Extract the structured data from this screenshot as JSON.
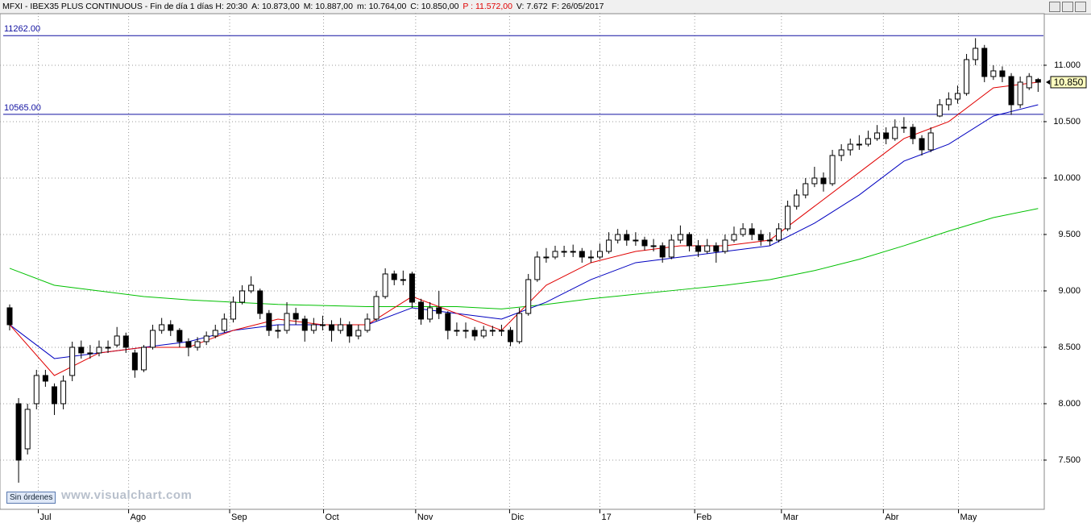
{
  "header": {
    "symbol": "MFXI - IBEX35 PLUS CONTINUOUS - Fin de día 1 días",
    "items": [
      "H: 20:30",
      "A: 10.873,00",
      "M: 10.887,00",
      "m: 10.764,00",
      "C: 10.850,00",
      "P : 11.572,00",
      "V: 7.672",
      "F: 26/05/2017"
    ]
  },
  "ui": {
    "orders_button": "Sin órdenes",
    "watermark": "www.visualchart.com"
  },
  "chart_data": {
    "type": "candlestick",
    "ylim": [
      7064,
      11464
    ],
    "xlim": [
      -1.08,
      115.6
    ],
    "grid": true,
    "yticks": [
      {
        "value": 7500,
        "label": "7.500"
      },
      {
        "value": 8000,
        "label": "8.000"
      },
      {
        "value": 8500,
        "label": "8.500"
      },
      {
        "value": 9000,
        "label": "9.000"
      },
      {
        "value": 9500,
        "label": "9.500"
      },
      {
        "value": 10000,
        "label": "10.000"
      },
      {
        "value": 10500,
        "label": "10.500"
      },
      {
        "value": 11000,
        "label": "11.000"
      }
    ],
    "xticks": [
      {
        "value": 3.2,
        "label": "Jul"
      },
      {
        "value": 13.3,
        "label": "Ago"
      },
      {
        "value": 24.6,
        "label": "Sep"
      },
      {
        "value": 35.1,
        "label": "Oct"
      },
      {
        "value": 45.4,
        "label": "Nov"
      },
      {
        "value": 55.9,
        "label": "Dic"
      },
      {
        "value": 66.0,
        "label": "17"
      },
      {
        "value": 76.6,
        "label": "Feb"
      },
      {
        "value": 86.3,
        "label": "Mar"
      },
      {
        "value": 97.7,
        "label": "Abr"
      },
      {
        "value": 106.1,
        "label": "May"
      }
    ],
    "levels": [
      {
        "value": 11262,
        "label": "11262.00"
      },
      {
        "value": 10565,
        "label": "10565.00"
      }
    ],
    "last_price": {
      "value": 10850,
      "label": "10.850"
    },
    "candles": [
      [
        8850,
        8880,
        8650,
        8700
      ],
      [
        8000,
        8050,
        7300,
        7500
      ],
      [
        7600,
        8000,
        7550,
        7950
      ],
      [
        8000,
        8300,
        7950,
        8250
      ],
      [
        8250,
        8300,
        8150,
        8200
      ],
      [
        8150,
        8180,
        7900,
        8000
      ],
      [
        8000,
        8250,
        7950,
        8200
      ],
      [
        8250,
        8550,
        8200,
        8500
      ],
      [
        8500,
        8560,
        8400,
        8450
      ],
      [
        8450,
        8520,
        8400,
        8450
      ],
      [
        8450,
        8560,
        8420,
        8500
      ],
      [
        8500,
        8560,
        8450,
        8500
      ],
      [
        8520,
        8680,
        8500,
        8600
      ],
      [
        8600,
        8630,
        8450,
        8500
      ],
      [
        8450,
        8480,
        8230,
        8300
      ],
      [
        8300,
        8520,
        8280,
        8500
      ],
      [
        8500,
        8700,
        8480,
        8650
      ],
      [
        8650,
        8760,
        8620,
        8700
      ],
      [
        8700,
        8740,
        8600,
        8650
      ],
      [
        8650,
        8670,
        8500,
        8550
      ],
      [
        8550,
        8580,
        8420,
        8500
      ],
      [
        8500,
        8590,
        8470,
        8550
      ],
      [
        8550,
        8640,
        8520,
        8600
      ],
      [
        8600,
        8700,
        8580,
        8650
      ],
      [
        8650,
        8800,
        8630,
        8750
      ],
      [
        8750,
        8950,
        8720,
        8900
      ],
      [
        8900,
        9050,
        8880,
        9000
      ],
      [
        9000,
        9130,
        8980,
        9050
      ],
      [
        9000,
        9020,
        8750,
        8800
      ],
      [
        8800,
        8830,
        8600,
        8650
      ],
      [
        8650,
        8700,
        8580,
        8650
      ],
      [
        8650,
        8900,
        8620,
        8800
      ],
      [
        8800,
        8850,
        8700,
        8750
      ],
      [
        8750,
        8780,
        8550,
        8650
      ],
      [
        8650,
        8760,
        8620,
        8700
      ],
      [
        8700,
        8780,
        8650,
        8700
      ],
      [
        8700,
        8740,
        8550,
        8650
      ],
      [
        8650,
        8760,
        8620,
        8700
      ],
      [
        8700,
        8730,
        8540,
        8600
      ],
      [
        8600,
        8700,
        8570,
        8650
      ],
      [
        8650,
        8800,
        8630,
        8750
      ],
      [
        8750,
        9000,
        8730,
        8950
      ],
      [
        8950,
        9200,
        8930,
        9150
      ],
      [
        9150,
        9180,
        9050,
        9100
      ],
      [
        9100,
        9180,
        9050,
        9100
      ],
      [
        9150,
        9170,
        8850,
        8900
      ],
      [
        8900,
        8930,
        8700,
        8750
      ],
      [
        8750,
        8900,
        8720,
        8850
      ],
      [
        8850,
        9000,
        8750,
        8800
      ],
      [
        8800,
        8820,
        8570,
        8650
      ],
      [
        8650,
        8720,
        8600,
        8650
      ],
      [
        8650,
        8720,
        8580,
        8650
      ],
      [
        8650,
        8680,
        8560,
        8600
      ],
      [
        8600,
        8690,
        8580,
        8650
      ],
      [
        8650,
        8690,
        8600,
        8650
      ],
      [
        8650,
        8700,
        8600,
        8650
      ],
      [
        8650,
        8680,
        8510,
        8550
      ],
      [
        8550,
        8850,
        8530,
        8800
      ],
      [
        8800,
        9150,
        8780,
        9100
      ],
      [
        9100,
        9350,
        9080,
        9300
      ],
      [
        9300,
        9380,
        9250,
        9300
      ],
      [
        9300,
        9400,
        9280,
        9350
      ],
      [
        9350,
        9400,
        9300,
        9350
      ],
      [
        9350,
        9410,
        9300,
        9350
      ],
      [
        9350,
        9380,
        9250,
        9300
      ],
      [
        9300,
        9360,
        9250,
        9300
      ],
      [
        9300,
        9420,
        9280,
        9350
      ],
      [
        9350,
        9520,
        9330,
        9450
      ],
      [
        9450,
        9550,
        9420,
        9500
      ],
      [
        9500,
        9540,
        9400,
        9450
      ],
      [
        9450,
        9520,
        9400,
        9450
      ],
      [
        9450,
        9480,
        9360,
        9400
      ],
      [
        9400,
        9460,
        9350,
        9400
      ],
      [
        9400,
        9430,
        9250,
        9300
      ],
      [
        9300,
        9500,
        9280,
        9450
      ],
      [
        9450,
        9580,
        9420,
        9500
      ],
      [
        9500,
        9520,
        9350,
        9400
      ],
      [
        9400,
        9450,
        9300,
        9350
      ],
      [
        9350,
        9460,
        9330,
        9400
      ],
      [
        9400,
        9430,
        9250,
        9350
      ],
      [
        9350,
        9500,
        9330,
        9450
      ],
      [
        9450,
        9570,
        9430,
        9500
      ],
      [
        9500,
        9600,
        9480,
        9550
      ],
      [
        9550,
        9600,
        9450,
        9500
      ],
      [
        9500,
        9540,
        9400,
        9450
      ],
      [
        9450,
        9520,
        9400,
        9450
      ],
      [
        9450,
        9600,
        9430,
        9550
      ],
      [
        9550,
        9800,
        9530,
        9750
      ],
      [
        9750,
        9900,
        9720,
        9850
      ],
      [
        9850,
        10000,
        9820,
        9950
      ],
      [
        9950,
        10100,
        9920,
        10000
      ],
      [
        10000,
        10050,
        9880,
        9950
      ],
      [
        9950,
        10250,
        9930,
        10200
      ],
      [
        10200,
        10300,
        10150,
        10250
      ],
      [
        10250,
        10350,
        10200,
        10300
      ],
      [
        10300,
        10380,
        10250,
        10300
      ],
      [
        10300,
        10420,
        10280,
        10350
      ],
      [
        10350,
        10470,
        10330,
        10400
      ],
      [
        10400,
        10450,
        10300,
        10350
      ],
      [
        10350,
        10520,
        10330,
        10450
      ],
      [
        10450,
        10540,
        10400,
        10450
      ],
      [
        10450,
        10480,
        10300,
        10350
      ],
      [
        10350,
        10380,
        10200,
        10250
      ],
      [
        10250,
        10450,
        10230,
        10400
      ],
      [
        10550,
        10700,
        10540,
        10650
      ],
      [
        10650,
        10760,
        10600,
        10700
      ],
      [
        10700,
        10820,
        10660,
        10750
      ],
      [
        10750,
        11100,
        10730,
        11050
      ],
      [
        11050,
        11240,
        11000,
        11150
      ],
      [
        11150,
        11180,
        10850,
        10900
      ],
      [
        10900,
        11000,
        10870,
        10950
      ],
      [
        10950,
        10990,
        10850,
        10900
      ],
      [
        10900,
        10930,
        10560,
        10650
      ],
      [
        10650,
        10900,
        10620,
        10850
      ],
      [
        10800,
        10930,
        10780,
        10900
      ],
      [
        10873,
        10887,
        10764,
        10850
      ]
    ],
    "lines": [
      {
        "color": "#00c000",
        "x": [
          0,
          5,
          10,
          15,
          20,
          25,
          30,
          35,
          40,
          45,
          50,
          55,
          60,
          65,
          70,
          75,
          80,
          85,
          90,
          95,
          100,
          105,
          110,
          115
        ],
        "values": [
          9200,
          9050,
          9000,
          8950,
          8920,
          8900,
          8880,
          8870,
          8860,
          8860,
          8860,
          8840,
          8880,
          8930,
          8970,
          9010,
          9050,
          9100,
          9180,
          9280,
          9400,
          9530,
          9650,
          9730
        ]
      },
      {
        "color": "#0000c0",
        "x": [
          0,
          5,
          10,
          15,
          20,
          25,
          30,
          35,
          40,
          45,
          50,
          55,
          60,
          65,
          70,
          75,
          80,
          85,
          90,
          95,
          100,
          105,
          110,
          115
        ],
        "values": [
          8700,
          8400,
          8450,
          8500,
          8550,
          8650,
          8700,
          8700,
          8700,
          8850,
          8800,
          8750,
          8900,
          9100,
          9250,
          9300,
          9350,
          9400,
          9600,
          9850,
          10150,
          10300,
          10550,
          10650
        ]
      },
      {
        "color": "#e00000",
        "x": [
          0,
          5,
          10,
          15,
          20,
          25,
          30,
          35,
          40,
          45,
          50,
          55,
          60,
          65,
          70,
          75,
          80,
          85,
          90,
          95,
          100,
          105,
          110,
          115
        ],
        "values": [
          8700,
          8250,
          8450,
          8500,
          8500,
          8650,
          8750,
          8700,
          8700,
          8950,
          8800,
          8650,
          9050,
          9250,
          9350,
          9400,
          9400,
          9450,
          9750,
          10050,
          10350,
          10500,
          10800,
          10850
        ]
      }
    ]
  }
}
